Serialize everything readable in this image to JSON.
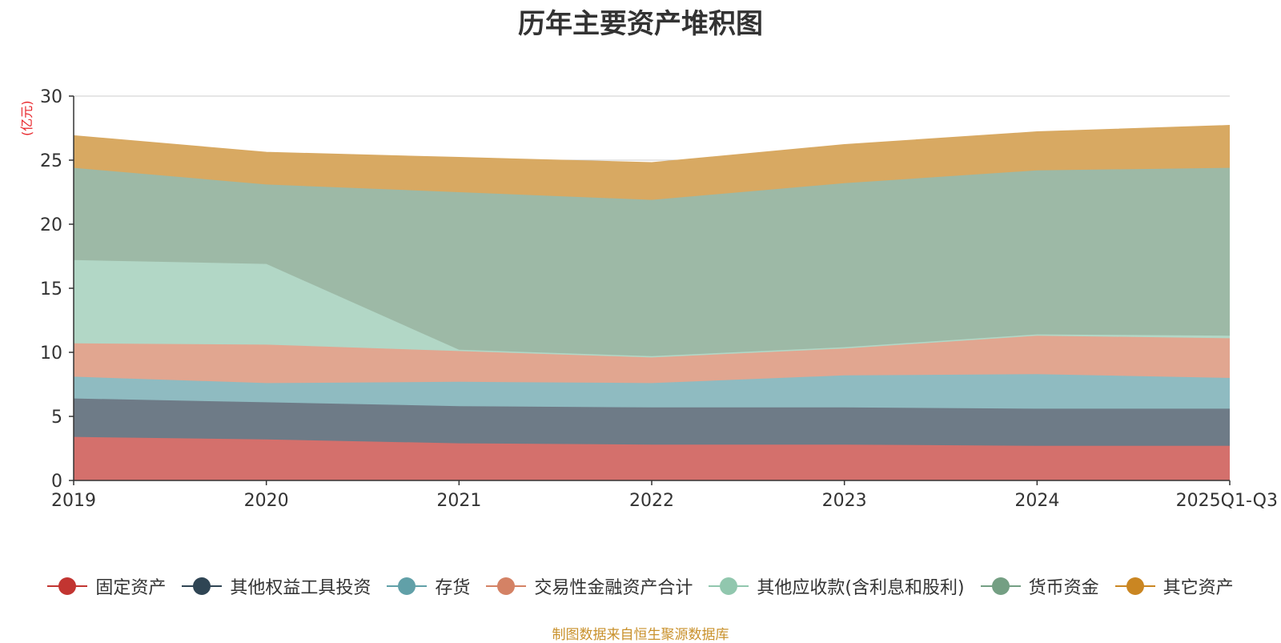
{
  "chart_data": {
    "type": "area",
    "stacked": true,
    "title": "历年主要资产堆积图",
    "ylabel": "(亿元)",
    "xlabel": "",
    "ylim": [
      0,
      30
    ],
    "yticks": [
      0,
      5,
      10,
      15,
      20,
      25,
      30
    ],
    "grid": true,
    "legend_position": "bottom",
    "categories": [
      "2019",
      "2020",
      "2021",
      "2022",
      "2023",
      "2024",
      "2025Q1-Q3"
    ],
    "series": [
      {
        "name": "固定资产",
        "color": "#d4706c",
        "values": [
          3.4,
          3.2,
          2.9,
          2.8,
          2.8,
          2.7,
          2.7
        ]
      },
      {
        "name": "其他权益工具投资",
        "color": "#6e7b87",
        "values": [
          3.0,
          2.9,
          2.9,
          2.9,
          2.9,
          2.9,
          2.9
        ]
      },
      {
        "name": "存货",
        "color": "#8fbbc1",
        "values": [
          1.7,
          1.5,
          1.9,
          1.9,
          2.5,
          2.7,
          2.4
        ]
      },
      {
        "name": "交易性金融资产合计",
        "color": "#e1a690",
        "values": [
          2.6,
          3.0,
          2.4,
          2.0,
          2.1,
          3.0,
          3.1
        ]
      },
      {
        "name": "其他应收款(含利息和股利)",
        "color": "#b2d7c6",
        "values": [
          6.5,
          6.3,
          0.1,
          0.1,
          0.1,
          0.1,
          0.2
        ]
      },
      {
        "name": "货币资金",
        "color": "#9db9a6",
        "values": [
          7.2,
          6.2,
          12.3,
          12.2,
          12.8,
          12.8,
          13.1
        ]
      },
      {
        "name": "其它资产",
        "color": "#d8a962",
        "values": [
          2.5,
          2.5,
          2.7,
          2.9,
          3.0,
          3.0,
          3.3
        ]
      }
    ],
    "legend_colors": [
      "#c23531",
      "#2f4554",
      "#61a0a8",
      "#d48265",
      "#91c7ae",
      "#749f83",
      "#ca8622"
    ]
  },
  "source_note": "制图数据来自恒生聚源数据库"
}
